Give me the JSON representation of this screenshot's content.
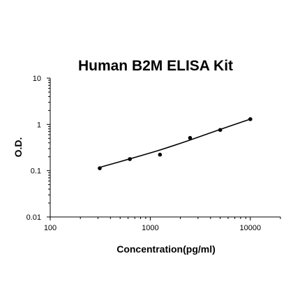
{
  "chart_data": {
    "type": "scatter",
    "title": "Human B2M ELISA Kit",
    "xlabel": "Concentration(pg/ml)",
    "ylabel": "O.D.",
    "x_scale": "log",
    "y_scale": "log",
    "xlim": [
      100,
      20000
    ],
    "ylim": [
      0.01,
      10
    ],
    "x_ticks": [
      "100",
      "1000",
      "10000"
    ],
    "y_ticks": [
      "0.01",
      "0.1",
      "1",
      "10"
    ],
    "grid": false,
    "legend": "none",
    "points": [
      {
        "x": 312.5,
        "y": 0.113
      },
      {
        "x": 625,
        "y": 0.178
      },
      {
        "x": 1250,
        "y": 0.222
      },
      {
        "x": 2500,
        "y": 0.51
      },
      {
        "x": 5000,
        "y": 0.76
      },
      {
        "x": 10000,
        "y": 1.3
      }
    ],
    "fit_curve": [
      {
        "x": 312.5,
        "y": 0.118
      },
      {
        "x": 625,
        "y": 0.18
      },
      {
        "x": 1250,
        "y": 0.28
      },
      {
        "x": 2500,
        "y": 0.46
      },
      {
        "x": 5000,
        "y": 0.78
      },
      {
        "x": 10000,
        "y": 1.3
      }
    ],
    "colors": {
      "marker": "#000000",
      "curve": "#000000",
      "axes": "#000000"
    }
  }
}
